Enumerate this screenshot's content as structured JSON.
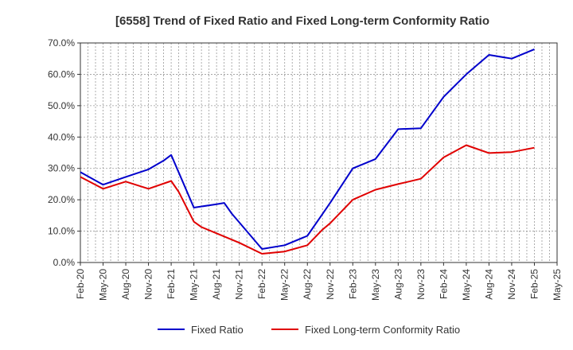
{
  "chart_data": {
    "type": "line",
    "title": "[6558]  Trend of Fixed Ratio and Fixed Long-term Conformity Ratio",
    "xlabel": "",
    "ylabel": "",
    "ylim": [
      0,
      70
    ],
    "y_ticks": [
      "0.0%",
      "10.0%",
      "20.0%",
      "30.0%",
      "40.0%",
      "50.0%",
      "60.0%",
      "70.0%"
    ],
    "x_tick_labels": [
      "Feb-20",
      "May-20",
      "Aug-20",
      "Nov-20",
      "Feb-21",
      "May-21",
      "Aug-21",
      "Nov-21",
      "Feb-22",
      "May-22",
      "Aug-22",
      "Nov-22",
      "Feb-23",
      "May-23",
      "Aug-23",
      "Nov-23",
      "Feb-24",
      "May-24",
      "Aug-24",
      "Nov-24",
      "Feb-25",
      "May-25"
    ],
    "grid": true,
    "legend_position": "bottom",
    "series": [
      {
        "name": "Fixed Ratio",
        "color": "#0000cc",
        "points": [
          [
            0,
            28.8
          ],
          [
            3,
            24.8
          ],
          [
            6,
            27.3
          ],
          [
            9,
            29.7
          ],
          [
            11,
            32.5
          ],
          [
            12,
            34.3
          ],
          [
            13,
            28.7
          ],
          [
            15,
            17.5
          ],
          [
            18,
            18.6
          ],
          [
            19,
            19.0
          ],
          [
            20,
            15.6
          ],
          [
            24,
            4.3
          ],
          [
            27,
            5.5
          ],
          [
            30,
            8.5
          ],
          [
            32,
            15.5
          ],
          [
            33,
            19.0
          ],
          [
            36,
            30.0
          ],
          [
            39,
            33.0
          ],
          [
            42,
            42.5
          ],
          [
            45,
            42.8
          ],
          [
            48,
            52.8
          ],
          [
            51,
            60.0
          ],
          [
            54,
            66.2
          ],
          [
            57,
            65.0
          ],
          [
            60,
            68.0
          ]
        ]
      },
      {
        "name": "Fixed Long-term Conformity Ratio",
        "color": "#e00000",
        "points": [
          [
            0,
            27.3
          ],
          [
            3,
            23.5
          ],
          [
            6,
            25.8
          ],
          [
            9,
            23.5
          ],
          [
            12,
            26.0
          ],
          [
            13,
            22.5
          ],
          [
            15,
            13.0
          ],
          [
            16,
            11.3
          ],
          [
            18,
            9.3
          ],
          [
            21,
            6.3
          ],
          [
            24,
            2.8
          ],
          [
            27,
            3.5
          ],
          [
            30,
            5.5
          ],
          [
            32,
            10.5
          ],
          [
            33,
            12.5
          ],
          [
            36,
            20.0
          ],
          [
            39,
            23.2
          ],
          [
            42,
            25.0
          ],
          [
            45,
            26.7
          ],
          [
            48,
            33.5
          ],
          [
            51,
            37.4
          ],
          [
            54,
            34.9
          ],
          [
            57,
            35.2
          ],
          [
            60,
            36.6
          ]
        ]
      }
    ]
  }
}
